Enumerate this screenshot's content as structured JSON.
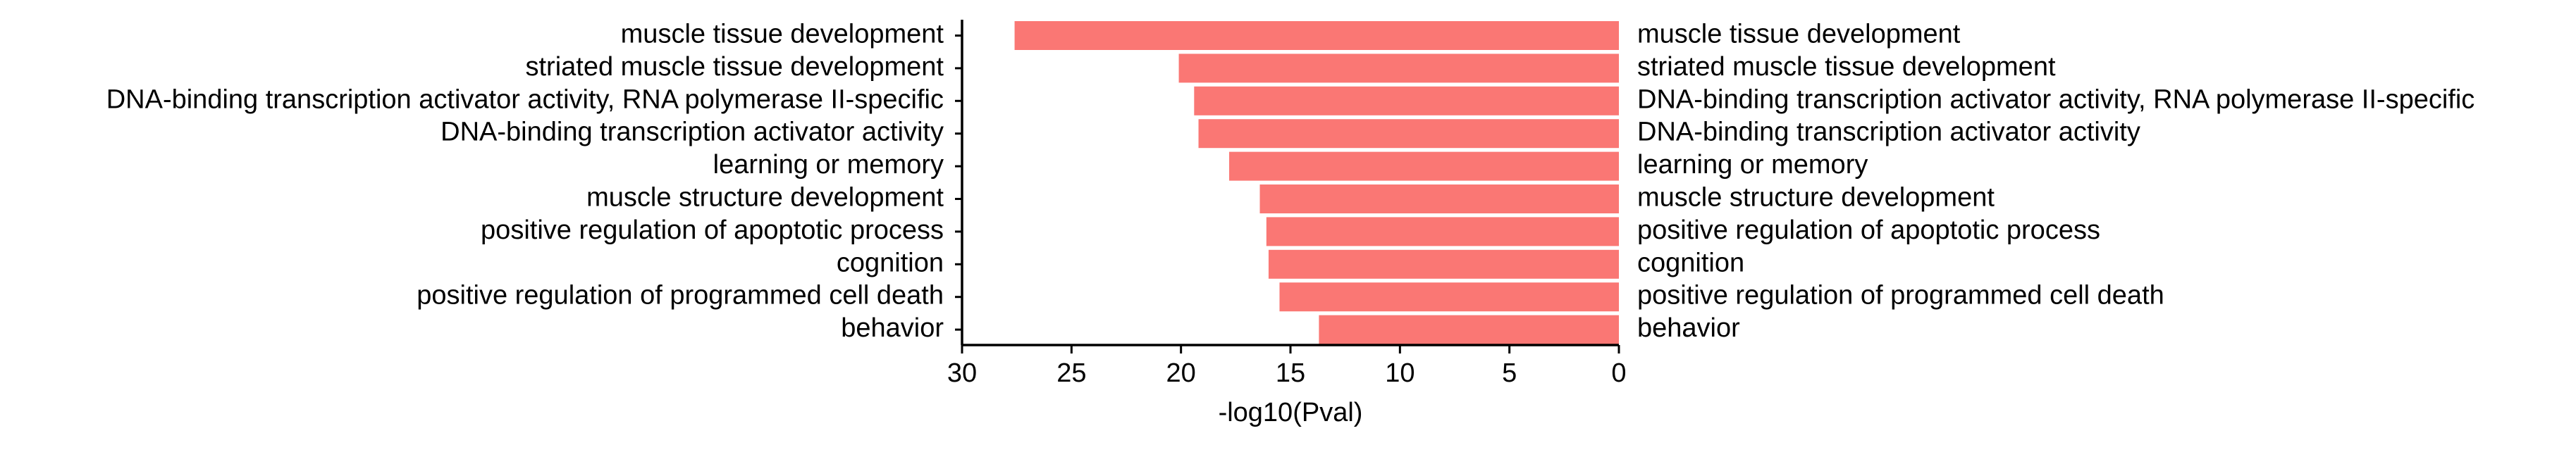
{
  "chart_data": {
    "type": "bar",
    "orientation": "horizontal",
    "xlabel": "-log10(Pval)",
    "ylabel": "",
    "xlim": [
      30,
      0
    ],
    "x_inverted": true,
    "xticks": [
      30,
      25,
      20,
      15,
      10,
      5,
      0
    ],
    "grid": false,
    "legend": "none",
    "bar_color": "#FA7774",
    "categories": [
      "muscle tissue development",
      "striated muscle tissue development",
      "DNA-binding transcription activator activity, RNA polymerase II-specific",
      "DNA-binding transcription activator activity",
      "learning or memory",
      "muscle structure development",
      "positive regulation of apoptotic process",
      "cognition",
      "positive regulation of programmed cell death",
      "behavior"
    ],
    "values": [
      27.6,
      20.1,
      19.4,
      19.2,
      17.8,
      16.4,
      16.1,
      16.0,
      15.5,
      13.7
    ]
  }
}
